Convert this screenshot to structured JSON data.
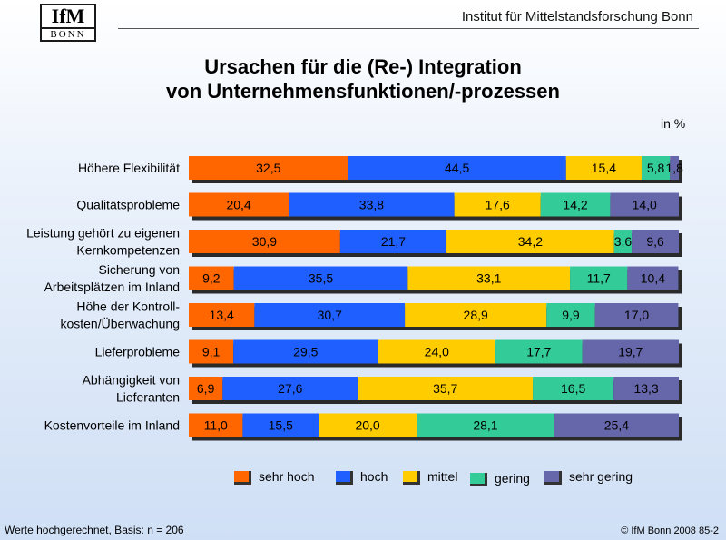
{
  "header": {
    "logo_top": "IfM",
    "logo_bottom": "BONN",
    "institute": "Institut für Mittelstandsforschung Bonn"
  },
  "title_line1": "Ursachen für die (Re-) Integration",
  "title_line2": "von Unternehmensfunktionen/-prozessen",
  "unit": "in %",
  "footer": {
    "basis": "Werte hochgerechnet, Basis: n = 206",
    "copyright": "© IfM Bonn 2008  85-2"
  },
  "chart_data": {
    "type": "bar",
    "orientation": "horizontal",
    "stacked": "100%",
    "categories": [
      [
        "Höhere Flexibilität"
      ],
      [
        "Qualitätsprobleme"
      ],
      [
        "Leistung gehört zu eigenen",
        "Kernkompetenzen"
      ],
      [
        "Sicherung von",
        "Arbeitsplätzen im Inland"
      ],
      [
        "Höhe der Kontroll-",
        "kosten/Überwachung"
      ],
      [
        "Lieferprobleme"
      ],
      [
        "Abhängigkeit von",
        "Lieferanten"
      ],
      [
        "Kostenvorteile im Inland"
      ]
    ],
    "series": [
      {
        "name": "sehr hoch",
        "color": "#ff6600",
        "values": [
          32.5,
          20.4,
          30.9,
          9.2,
          13.4,
          9.1,
          6.9,
          11.0
        ],
        "labels": [
          "32,5",
          "20,4",
          "30,9",
          "9,2",
          "13,4",
          "9,1",
          "6,9",
          "11,0"
        ]
      },
      {
        "name": "hoch",
        "color": "#1f5fff",
        "values": [
          44.5,
          33.8,
          21.7,
          35.5,
          30.7,
          29.5,
          27.6,
          15.5
        ],
        "labels": [
          "44,5",
          "33,8",
          "21,7",
          "35,5",
          "30,7",
          "29,5",
          "27,6",
          "15,5"
        ]
      },
      {
        "name": "mittel",
        "color": "#ffcc00",
        "values": [
          15.4,
          17.6,
          34.2,
          33.1,
          28.9,
          24.0,
          35.7,
          20.0
        ],
        "labels": [
          "15,4",
          "17,6",
          "34,2",
          "33,1",
          "28,9",
          "24,0",
          "35,7",
          "20,0"
        ]
      },
      {
        "name": "gering",
        "color": "#33cc99",
        "values": [
          5.8,
          14.2,
          3.6,
          11.7,
          9.9,
          17.7,
          16.5,
          28.1
        ],
        "labels": [
          "5,8",
          "14,2",
          "3,6",
          "11,7",
          "9,9",
          "17,7",
          "16,5",
          "28,1"
        ]
      },
      {
        "name": "sehr gering",
        "color": "#6666aa",
        "values": [
          1.8,
          14.0,
          9.6,
          10.4,
          17.0,
          19.7,
          13.3,
          25.4
        ],
        "labels": [
          "1,8",
          "14,0",
          "9,6",
          "10,4",
          "17,0",
          "19,7",
          "13,3",
          "25,4"
        ]
      }
    ],
    "xlim": [
      0,
      100
    ],
    "legend_position": "bottom"
  }
}
